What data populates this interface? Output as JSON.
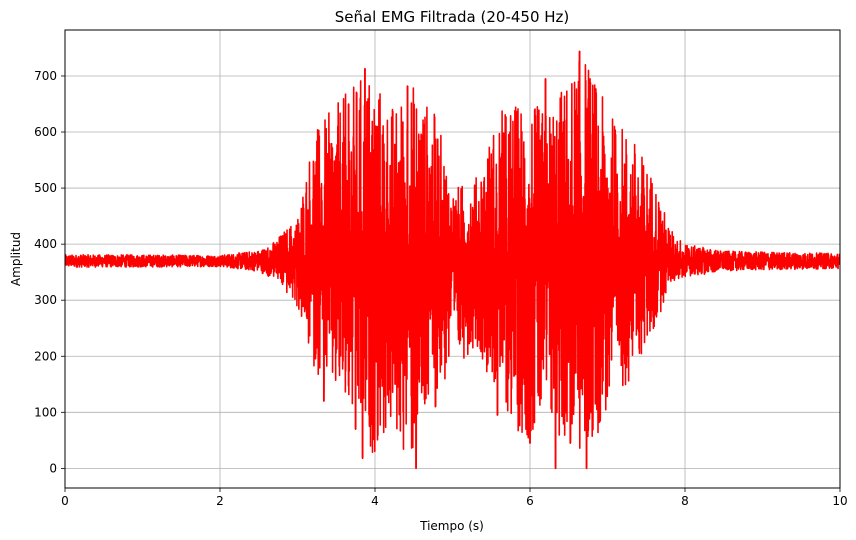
{
  "chart_data": {
    "type": "line",
    "title": "Señal EMG Filtrada (20-450 Hz)",
    "xlabel": "Tiempo (s)",
    "ylabel": "Amplitud",
    "xlim": [
      0,
      10
    ],
    "ylim": [
      -35,
      782
    ],
    "xticks": [
      0,
      2,
      4,
      6,
      8,
      10
    ],
    "yticks": [
      0,
      100,
      200,
      300,
      400,
      500,
      600,
      700
    ],
    "grid": true,
    "legend": "none",
    "baseline": 370,
    "series": [
      {
        "color": "#ff0000",
        "envelope": {
          "x": [
            0.0,
            1.0,
            2.0,
            2.5,
            2.7,
            3.0,
            3.2,
            3.5,
            3.8,
            3.95,
            4.2,
            4.5,
            4.8,
            5.0,
            5.3,
            5.6,
            5.9,
            6.2,
            6.5,
            6.7,
            7.0,
            7.3,
            7.6,
            7.8,
            8.0,
            8.5,
            10.0
          ],
          "max": [
            380,
            380,
            380,
            388,
            405,
            450,
            600,
            650,
            700,
            715,
            650,
            690,
            630,
            500,
            520,
            640,
            660,
            640,
            700,
            745,
            640,
            600,
            520,
            430,
            400,
            390,
            385
          ],
          "min": [
            358,
            358,
            360,
            350,
            340,
            285,
            180,
            120,
            60,
            20,
            60,
            0,
            120,
            170,
            220,
            120,
            50,
            60,
            40,
            0,
            100,
            160,
            240,
            330,
            340,
            355,
            358
          ]
        },
        "peaks": [
          {
            "x": 3.28,
            "y": 593
          },
          {
            "x": 3.66,
            "y": 650
          },
          {
            "x": 3.87,
            "y": 713
          },
          {
            "x": 4.42,
            "y": 682
          },
          {
            "x": 5.66,
            "y": 598
          },
          {
            "x": 6.64,
            "y": 744
          },
          {
            "x": 6.2,
            "y": 695
          }
        ],
        "troughs": [
          {
            "x": 3.34,
            "y": 120
          },
          {
            "x": 3.75,
            "y": 70
          },
          {
            "x": 3.84,
            "y": 18
          },
          {
            "x": 3.93,
            "y": 75
          },
          {
            "x": 4.26,
            "y": 150
          },
          {
            "x": 4.53,
            "y": 0
          },
          {
            "x": 4.78,
            "y": 110
          },
          {
            "x": 5.58,
            "y": 95
          },
          {
            "x": 5.72,
            "y": 160
          },
          {
            "x": 6.0,
            "y": 45
          },
          {
            "x": 6.33,
            "y": 0
          },
          {
            "x": 6.52,
            "y": 45
          },
          {
            "x": 6.73,
            "y": 0
          }
        ]
      }
    ]
  }
}
